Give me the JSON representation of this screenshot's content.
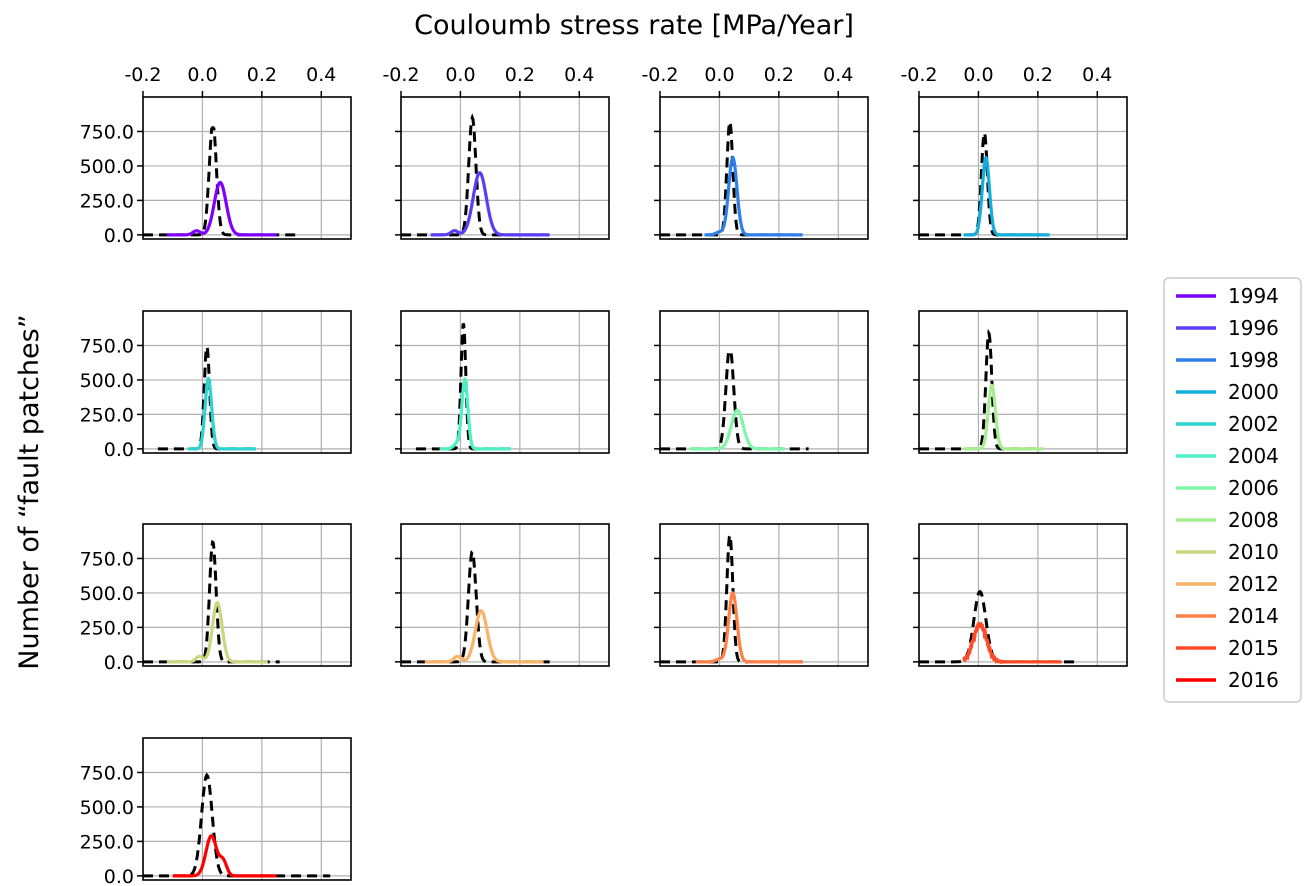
{
  "figure": {
    "top_label": "Couloumb stress rate [MPa/Year]",
    "left_label": "Number of “fault patches”"
  },
  "chart_data": {
    "type": "line",
    "layout_grid": {
      "rows": 4,
      "cols": 4
    },
    "shared_x_ticks": [
      -0.2,
      0.0,
      0.2,
      0.4
    ],
    "x_tick_labels": [
      "-0.2",
      "0.0",
      "0.2",
      "0.4"
    ],
    "xlim": [
      -0.2,
      0.5
    ],
    "y_ticks": [
      0,
      250,
      500,
      750
    ],
    "y_tick_labels": [
      "0.0",
      "250.0",
      "500.0",
      "750.0"
    ],
    "ylim": [
      -30,
      1000
    ],
    "grid": true,
    "reference_style": "dashed-black",
    "legend": {
      "placement": "right",
      "entries": [
        {
          "label": "1994",
          "color": "#7F00FF"
        },
        {
          "label": "1996",
          "color": "#5A3EF5"
        },
        {
          "label": "1998",
          "color": "#2E7FE8"
        },
        {
          "label": "2000",
          "color": "#13AEDB"
        },
        {
          "label": "2002",
          "color": "#2BD4D1"
        },
        {
          "label": "2004",
          "color": "#4CF0C4"
        },
        {
          "label": "2006",
          "color": "#80F6AA"
        },
        {
          "label": "2008",
          "color": "#A8EE8F"
        },
        {
          "label": "2010",
          "color": "#CBD680"
        },
        {
          "label": "2012",
          "color": "#F9B266"
        },
        {
          "label": "2014",
          "color": "#FF8046"
        },
        {
          "label": "2015",
          "color": "#FF4B27"
        },
        {
          "label": "2016",
          "color": "#FF0000"
        }
      ]
    },
    "panels": [
      {
        "year": "1994",
        "show_top_ticks": true,
        "show_y_labels": true,
        "reference": {
          "peak_x": 0.035,
          "peak_y": 810,
          "width": 0.012,
          "x_range": [
            -0.2,
            0.33
          ],
          "flat_top": true
        },
        "series": {
          "peak_x": 0.06,
          "peak_y": 380,
          "width": 0.02,
          "x_range": [
            -0.12,
            0.25
          ],
          "bump_x": -0.02,
          "bump_y": 30
        }
      },
      {
        "year": "1996",
        "show_top_ticks": true,
        "show_y_labels": false,
        "reference": {
          "peak_x": 0.04,
          "peak_y": 850,
          "width": 0.012,
          "x_range": [
            -0.2,
            0.28
          ]
        },
        "series": {
          "peak_x": 0.065,
          "peak_y": 450,
          "width": 0.022,
          "x_range": [
            -0.1,
            0.3
          ],
          "bump_x": -0.02,
          "bump_y": 30
        }
      },
      {
        "year": "1998",
        "show_top_ticks": true,
        "show_y_labels": false,
        "reference": {
          "peak_x": 0.035,
          "peak_y": 820,
          "width": 0.01,
          "x_range": [
            -0.2,
            0.25
          ]
        },
        "series": {
          "peak_x": 0.045,
          "peak_y": 560,
          "width": 0.014,
          "x_range": [
            -0.05,
            0.28
          ],
          "bump_x": 0.0,
          "bump_y": 20
        }
      },
      {
        "year": "2000",
        "show_top_ticks": true,
        "show_y_labels": false,
        "reference": {
          "peak_x": 0.02,
          "peak_y": 740,
          "width": 0.01,
          "x_range": [
            -0.2,
            0.22
          ]
        },
        "series": {
          "peak_x": 0.025,
          "peak_y": 560,
          "width": 0.012,
          "x_range": [
            -0.05,
            0.24
          ],
          "bump_x": 0.0,
          "bump_y": 0
        }
      },
      {
        "year": "2002",
        "show_top_ticks": false,
        "show_y_labels": true,
        "reference": {
          "peak_x": 0.015,
          "peak_y": 740,
          "width": 0.009,
          "x_range": [
            -0.15,
            0.18
          ]
        },
        "series": {
          "peak_x": 0.02,
          "peak_y": 510,
          "width": 0.011,
          "x_range": [
            -0.05,
            0.18
          ],
          "bump_x": 0.0,
          "bump_y": 0
        }
      },
      {
        "year": "2004",
        "show_top_ticks": false,
        "show_y_labels": false,
        "reference": {
          "peak_x": 0.01,
          "peak_y": 910,
          "width": 0.008,
          "x_range": [
            -0.15,
            0.17
          ]
        },
        "series": {
          "peak_x": 0.015,
          "peak_y": 500,
          "width": 0.01,
          "x_range": [
            -0.07,
            0.17
          ],
          "bump_x": -0.01,
          "bump_y": 40
        }
      },
      {
        "year": "2006",
        "show_top_ticks": false,
        "show_y_labels": false,
        "reference": {
          "peak_x": 0.035,
          "peak_y": 740,
          "width": 0.013,
          "x_range": [
            -0.2,
            0.3
          ],
          "flat_top": true
        },
        "series": {
          "peak_x": 0.06,
          "peak_y": 280,
          "width": 0.02,
          "x_range": [
            -0.1,
            0.22
          ],
          "bump_x": 0.0,
          "bump_y": 0
        }
      },
      {
        "year": "2008",
        "show_top_ticks": false,
        "show_y_labels": false,
        "reference": {
          "peak_x": 0.035,
          "peak_y": 840,
          "width": 0.01,
          "x_range": [
            -0.2,
            0.2
          ]
        },
        "series": {
          "peak_x": 0.045,
          "peak_y": 460,
          "width": 0.012,
          "x_range": [
            -0.05,
            0.22
          ],
          "bump_x": 0.0,
          "bump_y": 0
        }
      },
      {
        "year": "2010",
        "show_top_ticks": false,
        "show_y_labels": true,
        "reference": {
          "peak_x": 0.035,
          "peak_y": 870,
          "width": 0.011,
          "x_range": [
            -0.2,
            0.26
          ]
        },
        "series": {
          "peak_x": 0.05,
          "peak_y": 430,
          "width": 0.016,
          "x_range": [
            -0.12,
            0.22
          ],
          "bump_x": -0.01,
          "bump_y": 40
        }
      },
      {
        "year": "2012",
        "show_top_ticks": false,
        "show_y_labels": false,
        "reference": {
          "peak_x": 0.04,
          "peak_y": 800,
          "width": 0.013,
          "x_range": [
            -0.2,
            0.32
          ]
        },
        "series": {
          "peak_x": 0.07,
          "peak_y": 370,
          "width": 0.02,
          "x_range": [
            -0.12,
            0.28
          ],
          "bump_x": -0.01,
          "bump_y": 40
        }
      },
      {
        "year": "2014",
        "show_top_ticks": false,
        "show_y_labels": false,
        "reference": {
          "peak_x": 0.035,
          "peak_y": 920,
          "width": 0.01,
          "x_range": [
            -0.2,
            0.28
          ]
        },
        "series": {
          "peak_x": 0.045,
          "peak_y": 500,
          "width": 0.014,
          "x_range": [
            -0.08,
            0.28
          ],
          "bump_x": 0.0,
          "bump_y": 20
        }
      },
      {
        "year": "2015",
        "show_top_ticks": false,
        "show_y_labels": false,
        "reference": {
          "peak_x": 0.005,
          "peak_y": 510,
          "width": 0.02,
          "x_range": [
            -0.2,
            0.33
          ]
        },
        "series": {
          "peak_x": 0.005,
          "peak_y": 270,
          "width": 0.022,
          "x_range": [
            -0.05,
            0.28
          ],
          "bump_x": 0.0,
          "bump_y": 0,
          "noisy": true
        }
      },
      {
        "year": "2016",
        "show_top_ticks": false,
        "show_y_labels": true,
        "reference": {
          "peak_x": 0.015,
          "peak_y": 730,
          "width": 0.018,
          "x_range": [
            -0.2,
            0.43
          ]
        },
        "series": {
          "peak_x": 0.03,
          "peak_y": 290,
          "width": 0.018,
          "x_range": [
            -0.1,
            0.25
          ],
          "bump_x": 0.0,
          "bump_y": 0,
          "shoulder": true
        }
      }
    ]
  }
}
